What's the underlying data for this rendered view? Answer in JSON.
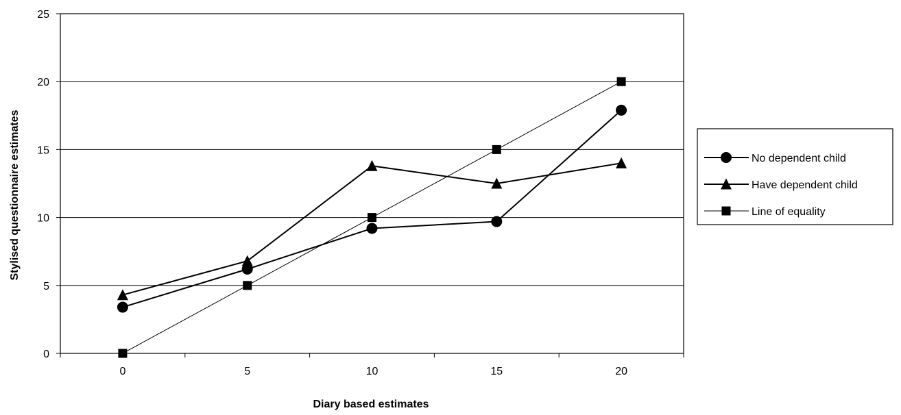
{
  "chart_data": {
    "type": "line",
    "title": "",
    "xlabel": "Diary based estimates",
    "ylabel": "Stylised questionnaire estimates",
    "categories": [
      "0",
      "5",
      "10",
      "15",
      "20"
    ],
    "ylim": [
      0,
      25
    ],
    "yticks": [
      "0",
      "5",
      "10",
      "15",
      "20",
      "25"
    ],
    "grid": "horizontal",
    "legend_position": "right",
    "series": [
      {
        "name": "No dependent child",
        "marker": "circle",
        "values": [
          3.4,
          6.2,
          9.2,
          9.7,
          17.9
        ]
      },
      {
        "name": "Have dependent child",
        "marker": "triangle",
        "values": [
          4.3,
          6.8,
          13.8,
          12.5,
          14.0
        ]
      },
      {
        "name": "Line of equality",
        "marker": "square",
        "values": [
          0,
          5,
          10,
          15,
          20
        ]
      }
    ]
  }
}
